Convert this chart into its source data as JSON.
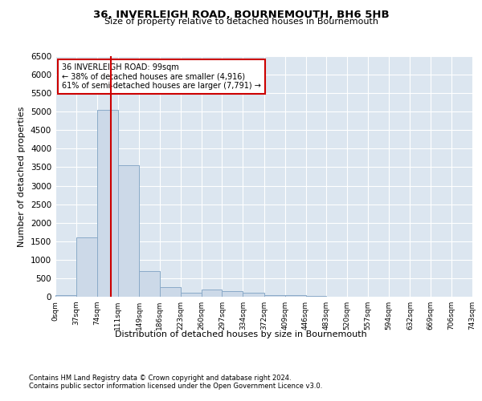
{
  "title1": "36, INVERLEIGH ROAD, BOURNEMOUTH, BH6 5HB",
  "title2": "Size of property relative to detached houses in Bournemouth",
  "xlabel": "Distribution of detached houses by size in Bournemouth",
  "ylabel": "Number of detached properties",
  "footer1": "Contains HM Land Registry data © Crown copyright and database right 2024.",
  "footer2": "Contains public sector information licensed under the Open Government Licence v3.0.",
  "annotation_line1": "36 INVERLEIGH ROAD: 99sqm",
  "annotation_line2": "← 38% of detached houses are smaller (4,916)",
  "annotation_line3": "61% of semi-detached houses are larger (7,791) →",
  "property_size_sqm": 99,
  "bar_color": "#ccd9e8",
  "bar_edge_color": "#8aaac8",
  "vline_color": "#cc0000",
  "plot_bg_color": "#dce6f0",
  "grid_color": "#ffffff",
  "annotation_box_color": "#cc0000",
  "bin_edges": [
    0,
    37,
    74,
    111,
    149,
    186,
    223,
    260,
    297,
    334,
    372,
    409,
    446,
    483,
    520,
    557,
    594,
    632,
    669,
    706,
    743
  ],
  "bar_values": [
    50,
    1600,
    5050,
    3550,
    700,
    250,
    100,
    200,
    150,
    100,
    50,
    50,
    30,
    10,
    5,
    5,
    0,
    0,
    0,
    0
  ],
  "ylim": [
    0,
    6500
  ],
  "yticks": [
    0,
    500,
    1000,
    1500,
    2000,
    2500,
    3000,
    3500,
    4000,
    4500,
    5000,
    5500,
    6000,
    6500
  ]
}
